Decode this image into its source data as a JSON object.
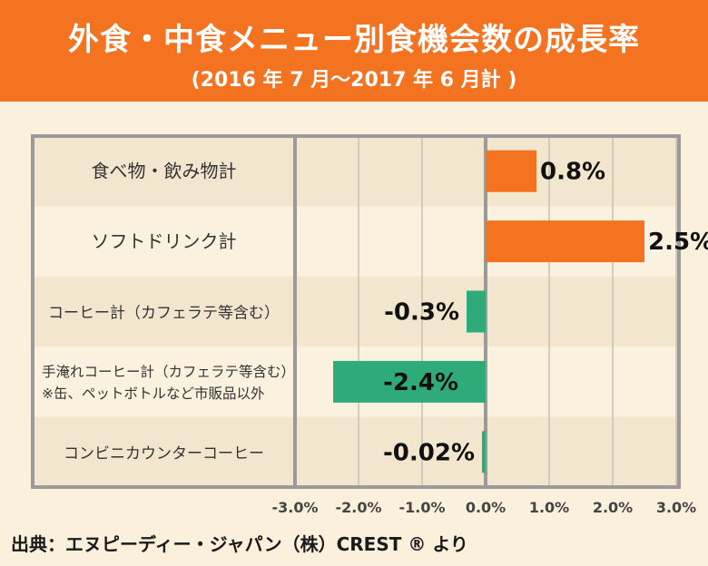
{
  "header": {
    "title": "外食・中食メニュー別食機会数の成長率",
    "subtitle": "(2016 年 7 月〜2017 年 6 月計 )"
  },
  "chart_data": {
    "type": "bar",
    "orientation": "horizontal",
    "categories": [
      [
        "食べ物・飲み物計"
      ],
      [
        "ソフトドリンク計"
      ],
      [
        "コーヒー計（カフェラテ等含む）"
      ],
      [
        "手淹れコーヒー計（カフェラテ等含む）",
        "※缶、ペットボトルなど市販品以外"
      ],
      [
        "コンビニカウンターコーヒー"
      ]
    ],
    "values": [
      0.8,
      2.5,
      -0.3,
      -2.4,
      -0.02
    ],
    "value_labels": [
      "0.8%",
      "2.5%",
      "-0.3%",
      "-2.4%",
      "-0.02%"
    ],
    "xlim": [
      -3.0,
      3.0
    ],
    "xticks": [
      "-3.0%",
      "-2.0%",
      "-1.0%",
      "0.0%",
      "1.0%",
      "2.0%",
      "3.0%"
    ],
    "positive_color": "#f47321",
    "negative_color": "#2eab79",
    "grid": true
  },
  "source": "出典：エヌピーディー・ジャパン（株）CREST ® より"
}
